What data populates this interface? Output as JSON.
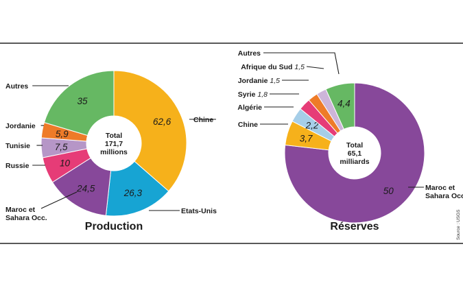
{
  "source": "Source : USGS",
  "chart_data": [
    {
      "type": "pie",
      "title": "Production",
      "center_text": [
        "Total",
        "171,7",
        "millions"
      ],
      "categories": [
        "Chine",
        "Etats-Unis",
        "Maroc et Sahara Occ.",
        "Russie",
        "Tunisie",
        "Jordanie",
        "Autres"
      ],
      "values": [
        62.6,
        26.3,
        24.5,
        10,
        7.5,
        5.9,
        35
      ],
      "value_labels": [
        "62,6",
        "26,3",
        "24,5",
        "10",
        "7,5",
        "5,9",
        "35"
      ],
      "colors": [
        "#F6B11B",
        "#17A4D3",
        "#87489A",
        "#E63C77",
        "#B696C7",
        "#EE7B28",
        "#66B863"
      ]
    },
    {
      "type": "pie",
      "title": "Réserves",
      "center_text": [
        "Total",
        "65,1",
        "milliards"
      ],
      "categories": [
        "Maroc et Sahara Occ.",
        "Chine",
        "Algérie",
        "Syrie",
        "Jordanie",
        "Afrique du Sud",
        "Autres"
      ],
      "values": [
        50,
        3.7,
        2.2,
        1.8,
        1.5,
        1.5,
        4.4
      ],
      "value_labels": [
        "50",
        "3,7",
        "2,2",
        "1,8",
        "1,5",
        "1,5",
        "4,4"
      ],
      "colors": [
        "#87489A",
        "#F6B11B",
        "#A6CEE8",
        "#E63C77",
        "#EE7B28",
        "#CDB5D9",
        "#66B863"
      ]
    }
  ]
}
